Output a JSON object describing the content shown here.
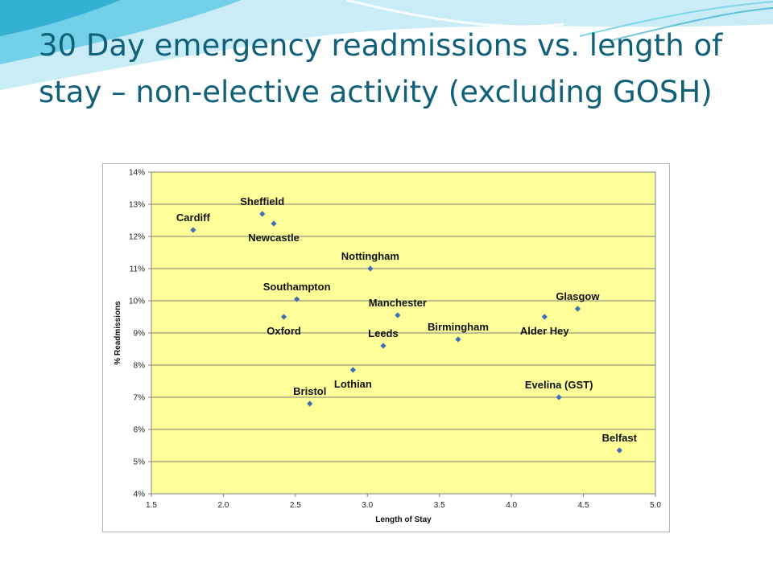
{
  "slide": {
    "title": "30 Day emergency readmissions vs. length of stay – non-elective activity (excluding GOSH)"
  },
  "colors": {
    "title": "#10607a",
    "plot_background": "#ffff99",
    "marker": "#3f6fb5",
    "gridline": "#7f7f7f",
    "swoosh_light": "#bfe9f5",
    "swoosh_mid": "#5ccbe6",
    "swoosh_dark": "#1aa3c8"
  },
  "chart_data": {
    "type": "scatter",
    "title": "",
    "xlabel": "Length of Stay",
    "ylabel": "% Readmissions",
    "xlim": [
      1.5,
      5.0
    ],
    "ylim": [
      4,
      14
    ],
    "x_ticks": [
      "1.5",
      "2.0",
      "2.5",
      "3.0",
      "3.5",
      "4.0",
      "4.5",
      "5.0"
    ],
    "y_ticks": [
      "4%",
      "5%",
      "6%",
      "7%",
      "8%",
      "9%",
      "10%",
      "11%",
      "12%",
      "13%",
      "14%"
    ],
    "grid": "horizontal",
    "legend": "none",
    "marker": "diamond",
    "points": [
      {
        "label": "Cardiff",
        "x": 1.79,
        "y": 12.2,
        "label_pos": "above"
      },
      {
        "label": "Sheffield",
        "x": 2.27,
        "y": 12.7,
        "label_pos": "above"
      },
      {
        "label": "Newcastle",
        "x": 2.35,
        "y": 12.4,
        "label_pos": "below"
      },
      {
        "label": "Nottingham",
        "x": 3.02,
        "y": 11.0,
        "label_pos": "above"
      },
      {
        "label": "Southampton",
        "x": 2.51,
        "y": 10.05,
        "label_pos": "above"
      },
      {
        "label": "Oxford",
        "x": 2.42,
        "y": 9.5,
        "label_pos": "below"
      },
      {
        "label": "Manchester",
        "x": 3.21,
        "y": 9.55,
        "label_pos": "above"
      },
      {
        "label": "Leeds",
        "x": 3.11,
        "y": 8.6,
        "label_pos": "above"
      },
      {
        "label": "Birmingham",
        "x": 3.63,
        "y": 8.8,
        "label_pos": "above"
      },
      {
        "label": "Glasgow",
        "x": 4.46,
        "y": 9.75,
        "label_pos": "above"
      },
      {
        "label": "Alder Hey",
        "x": 4.23,
        "y": 9.5,
        "label_pos": "below"
      },
      {
        "label": "Lothian",
        "x": 2.9,
        "y": 7.85,
        "label_pos": "below"
      },
      {
        "label": "Bristol",
        "x": 2.6,
        "y": 6.8,
        "label_pos": "above"
      },
      {
        "label": "Evelina (GST)",
        "x": 4.33,
        "y": 7.0,
        "label_pos": "above"
      },
      {
        "label": "Belfast",
        "x": 4.75,
        "y": 5.35,
        "label_pos": "above"
      }
    ]
  }
}
